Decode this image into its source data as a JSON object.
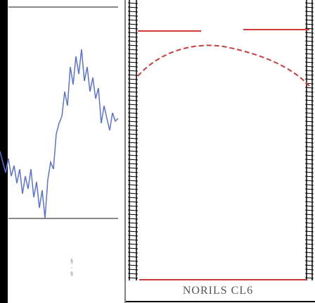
{
  "caption": "NORILS CL6",
  "small_marks": "§\n·\n§",
  "colors": {
    "signal": "#5a72d8",
    "arc": "#cf3b3b",
    "baseline": "#cf3b3b",
    "frame": "#000000",
    "gray_rule": "#8a8a8a"
  },
  "signal_trace": [
    [
      0,
      215
    ],
    [
      4,
      230
    ],
    [
      8,
      245
    ],
    [
      12,
      225
    ],
    [
      16,
      250
    ],
    [
      20,
      235
    ],
    [
      24,
      260
    ],
    [
      28,
      240
    ],
    [
      32,
      275
    ],
    [
      36,
      250
    ],
    [
      40,
      268
    ],
    [
      44,
      240
    ],
    [
      48,
      280
    ],
    [
      52,
      258
    ],
    [
      56,
      295
    ],
    [
      60,
      270
    ],
    [
      64,
      310
    ],
    [
      68,
      255
    ],
    [
      72,
      230
    ],
    [
      76,
      240
    ],
    [
      80,
      190
    ],
    [
      84,
      175
    ],
    [
      88,
      165
    ],
    [
      92,
      130
    ],
    [
      96,
      150
    ],
    [
      100,
      95
    ],
    [
      104,
      120
    ],
    [
      108,
      80
    ],
    [
      112,
      105
    ],
    [
      116,
      70
    ],
    [
      120,
      115
    ],
    [
      124,
      95
    ],
    [
      128,
      130
    ],
    [
      132,
      110
    ],
    [
      136,
      140
    ],
    [
      140,
      125
    ],
    [
      144,
      175
    ],
    [
      148,
      150
    ],
    [
      152,
      168
    ],
    [
      156,
      185
    ],
    [
      160,
      160
    ],
    [
      164,
      172
    ],
    [
      168,
      168
    ]
  ]
}
